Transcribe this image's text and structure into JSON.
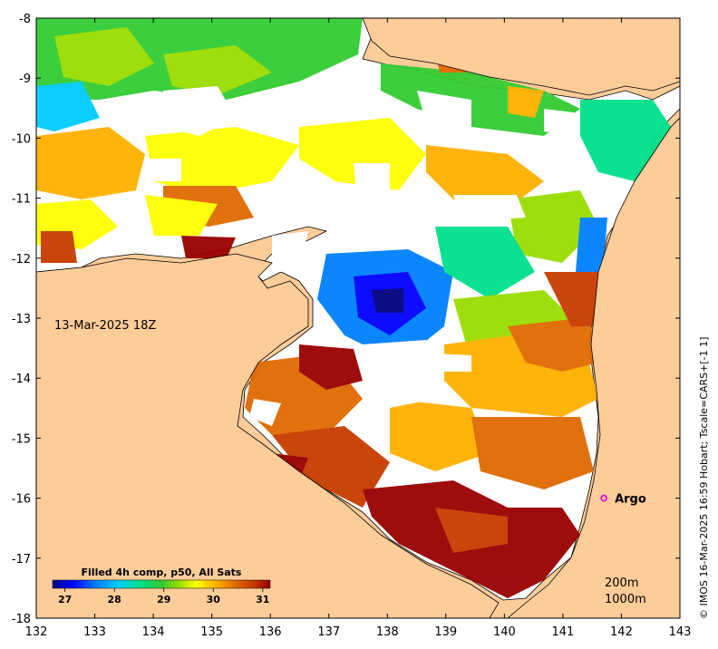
{
  "map": {
    "date_label": "13-Mar-2025 18Z",
    "x_ticks": [
      "132",
      "133",
      "134",
      "135",
      "136",
      "137",
      "138",
      "139",
      "140",
      "141",
      "142",
      "143"
    ],
    "y_ticks": [
      "-8",
      "-9",
      "-10",
      "-11",
      "-12",
      "-13",
      "-14",
      "-15",
      "-16",
      "-17",
      "-18"
    ],
    "lon_range": [
      132,
      143
    ],
    "lat_range": [
      -18,
      -8
    ],
    "argo": {
      "label": "Argo",
      "lon": 141.7,
      "lat": -16.0,
      "color": "#e600e6"
    },
    "depth_labels": [
      "200m",
      "1000m"
    ],
    "land_color": "#fccc99",
    "cloud_color": "#ffffff"
  },
  "colorbar": {
    "title": "Filled 4h comp, p50, All Sats",
    "ticks": [
      "27",
      "28",
      "29",
      "30",
      "31"
    ],
    "range": [
      26.75,
      31.15
    ],
    "colors": [
      "#00007f",
      "#0000ff",
      "#0080ff",
      "#00ccff",
      "#00e08c",
      "#33cc33",
      "#99dd00",
      "#ffff00",
      "#ffb000",
      "#e06a00",
      "#c83c00",
      "#990000"
    ]
  },
  "credit": "© IMOS 16-Mar-2025 16:59 Hobart; Tscale=CARS+[-1 1]"
}
